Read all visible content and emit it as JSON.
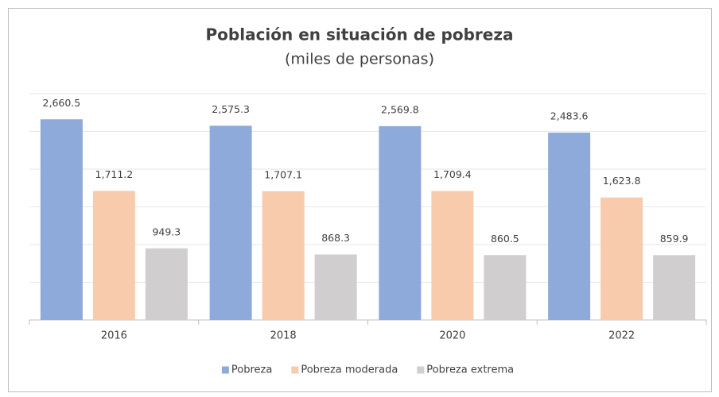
{
  "chart_data": {
    "type": "bar",
    "title": "Población en situación de pobreza",
    "subtitle": "(miles de personas)",
    "categories": [
      "2016",
      "2018",
      "2020",
      "2022"
    ],
    "series": [
      {
        "name": "Pobreza",
        "color": "#8eaadb",
        "values": [
          2660.5,
          2575.3,
          2569.8,
          2483.6
        ],
        "value_labels": [
          "2,660.5",
          "2,575.3",
          "2,569.8",
          "2,483.6"
        ]
      },
      {
        "name": "Pobreza moderada",
        "color": "#f8cbad",
        "values": [
          1711.2,
          1707.1,
          1709.4,
          1623.8
        ],
        "value_labels": [
          "1,711.2",
          "1,707.1",
          "1,709.4",
          "1,623.8"
        ]
      },
      {
        "name": "Pobreza extrema",
        "color": "#d0cece",
        "values": [
          949.3,
          868.3,
          860.5,
          859.9
        ],
        "value_labels": [
          "949.3",
          "868.3",
          "860.5",
          "859.9"
        ]
      }
    ],
    "ylim": [
      0,
      3000
    ],
    "yticks": [
      0,
      500,
      1000,
      1500,
      2000,
      2500,
      3000
    ],
    "grid": true,
    "legend": "bottom"
  }
}
